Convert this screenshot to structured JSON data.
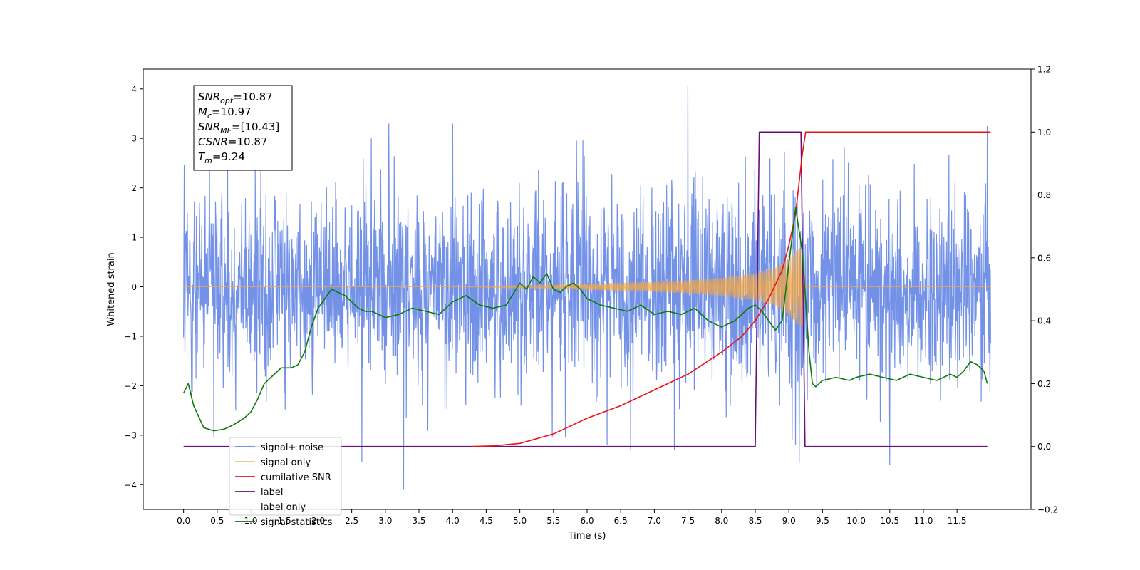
{
  "chart_data": {
    "type": "line",
    "title": "",
    "xlabel": "Time (s)",
    "ylabel": "Whitened strain",
    "xlim": [
      -0.6,
      12.6
    ],
    "ylim_left": [
      -4.5,
      4.4
    ],
    "ylim_right": [
      -0.2,
      1.2
    ],
    "x_ticks": [
      0.0,
      0.5,
      1.0,
      1.5,
      2.0,
      2.5,
      3.0,
      3.5,
      4.0,
      4.5,
      5.0,
      5.5,
      6.0,
      6.5,
      7.0,
      7.5,
      8.0,
      8.5,
      9.0,
      9.5,
      10.0,
      10.5,
      11.0,
      11.5
    ],
    "x_tick_labels": [
      "0.0",
      "0.5",
      "1.0",
      "1.5",
      "2.0",
      "2.5",
      "3.0",
      "3.5",
      "4.0",
      "4.5",
      "5.0",
      "5.5",
      "6.0",
      "6.5",
      "7.0",
      "7.5",
      "8.0",
      "8.5",
      "9.0",
      "9.5",
      "10.0",
      "10.5",
      "11.0",
      "11.5"
    ],
    "y_left_ticks": [
      -4,
      -3,
      -2,
      -1,
      0,
      1,
      2,
      3,
      4
    ],
    "y_left_tick_labels": [
      "−4",
      "−3",
      "−2",
      "−1",
      "0",
      "1",
      "2",
      "3",
      "4"
    ],
    "y_right_ticks": [
      -0.2,
      0.0,
      0.2,
      0.4,
      0.6,
      0.8,
      1.0,
      1.2
    ],
    "y_right_tick_labels": [
      "−0.2",
      "0.0",
      "0.2",
      "0.4",
      "0.6",
      "0.8",
      "1.0",
      "1.2"
    ],
    "grid": false,
    "legend_placement": "lower-left",
    "series": [
      {
        "name": "signal+ noise",
        "axis": "left",
        "color": "#6b8ce6",
        "style": "noise",
        "x_range": [
          0.0,
          12.0
        ],
        "typical_range": [
          -1.5,
          1.5
        ],
        "peak_max": 4.05,
        "peak_min": -4.1,
        "spikes": [
          [
            7.5,
            4.05
          ],
          [
            3.27,
            -4.1
          ],
          [
            10.5,
            -3.6
          ],
          [
            2.65,
            -3.55
          ],
          [
            6.3,
            -3.2
          ],
          [
            9.1,
            -3.2
          ],
          [
            0.45,
            -3.05
          ],
          [
            3.05,
            3.3
          ],
          [
            4.0,
            3.3
          ],
          [
            9.05,
            -3.1
          ],
          [
            11.95,
            3.25
          ],
          [
            7.3,
            -3.3
          ],
          [
            6.65,
            -3.3
          ]
        ]
      },
      {
        "name": "signal only",
        "axis": "left",
        "color": "#f5a742",
        "style": "chirp",
        "x": [
          0.0,
          2.0,
          4.0,
          5.0,
          6.0,
          6.5,
          7.0,
          7.5,
          8.0,
          8.5,
          8.8,
          9.0,
          9.1,
          9.2,
          9.25,
          12.0
        ],
        "amplitude": [
          0.0,
          0.0,
          0.0,
          0.02,
          0.06,
          0.08,
          0.1,
          0.13,
          0.18,
          0.27,
          0.38,
          0.55,
          0.72,
          0.82,
          0.0,
          0.0
        ]
      },
      {
        "name": "cumilative SNR",
        "axis": "right",
        "color": "#ee1111",
        "x": [
          4.3,
          4.6,
          5.0,
          5.5,
          6.0,
          6.5,
          7.0,
          7.5,
          8.0,
          8.3,
          8.5,
          8.7,
          8.9,
          9.0,
          9.1,
          9.2,
          9.25,
          12.0
        ],
        "values": [
          0.0,
          0.002,
          0.01,
          0.04,
          0.09,
          0.13,
          0.18,
          0.23,
          0.3,
          0.35,
          0.4,
          0.47,
          0.56,
          0.64,
          0.74,
          0.93,
          1.0,
          1.0
        ]
      },
      {
        "name": "label",
        "axis": "right",
        "color": "#6a0f7a",
        "x": [
          0.0,
          8.5,
          8.56,
          9.18,
          9.24,
          11.95
        ],
        "values": [
          0.0,
          0.0,
          1.0,
          1.0,
          0.0,
          0.0
        ]
      },
      {
        "name": "label only",
        "axis": "right",
        "color": "#000000",
        "hidden": true
      },
      {
        "name": "signal statistics",
        "axis": "right",
        "color": "#0a7a0a",
        "x": [
          0.0,
          0.07,
          0.15,
          0.3,
          0.45,
          0.6,
          0.75,
          0.9,
          1.0,
          1.1,
          1.2,
          1.3,
          1.45,
          1.6,
          1.7,
          1.8,
          1.9,
          2.0,
          2.1,
          2.2,
          2.3,
          2.4,
          2.5,
          2.6,
          2.7,
          2.8,
          3.0,
          3.2,
          3.4,
          3.6,
          3.8,
          4.0,
          4.2,
          4.4,
          4.6,
          4.8,
          5.0,
          5.1,
          5.2,
          5.3,
          5.4,
          5.5,
          5.6,
          5.7,
          5.8,
          5.9,
          6.0,
          6.2,
          6.4,
          6.6,
          6.8,
          7.0,
          7.2,
          7.4,
          7.6,
          7.8,
          7.9,
          8.0,
          8.2,
          8.4,
          8.5,
          8.6,
          8.7,
          8.8,
          8.9,
          9.0,
          9.1,
          9.2,
          9.3,
          9.35,
          9.4,
          9.45,
          9.5,
          9.7,
          9.9,
          10.0,
          10.2,
          10.4,
          10.6,
          10.8,
          11.0,
          11.2,
          11.4,
          11.5,
          11.6,
          11.7,
          11.8,
          11.9,
          11.95
        ],
        "values": [
          0.17,
          0.2,
          0.13,
          0.06,
          0.05,
          0.055,
          0.07,
          0.09,
          0.11,
          0.15,
          0.2,
          0.22,
          0.25,
          0.25,
          0.26,
          0.3,
          0.38,
          0.44,
          0.47,
          0.5,
          0.49,
          0.48,
          0.46,
          0.44,
          0.43,
          0.43,
          0.41,
          0.42,
          0.44,
          0.43,
          0.42,
          0.46,
          0.48,
          0.45,
          0.44,
          0.45,
          0.52,
          0.5,
          0.54,
          0.52,
          0.55,
          0.5,
          0.49,
          0.51,
          0.52,
          0.5,
          0.47,
          0.45,
          0.44,
          0.43,
          0.45,
          0.42,
          0.43,
          0.42,
          0.44,
          0.4,
          0.39,
          0.38,
          0.4,
          0.44,
          0.45,
          0.43,
          0.4,
          0.37,
          0.4,
          0.58,
          0.76,
          0.62,
          0.3,
          0.2,
          0.19,
          0.2,
          0.21,
          0.22,
          0.21,
          0.22,
          0.23,
          0.22,
          0.21,
          0.23,
          0.22,
          0.21,
          0.23,
          0.22,
          0.24,
          0.27,
          0.26,
          0.24,
          0.2
        ]
      }
    ],
    "annotation": {
      "lines": [
        {
          "base": "SNR",
          "sub": "opt",
          "value": "=10.87"
        },
        {
          "base": "M",
          "sub": "c",
          "value": "=10.97"
        },
        {
          "base": "SNR",
          "sub": "MF",
          "value": "=[10.43]"
        },
        {
          "base": "CSNR",
          "sub": "",
          "value": "=10.87"
        },
        {
          "base": "T",
          "sub": "m",
          "value": "=9.24"
        }
      ]
    }
  }
}
